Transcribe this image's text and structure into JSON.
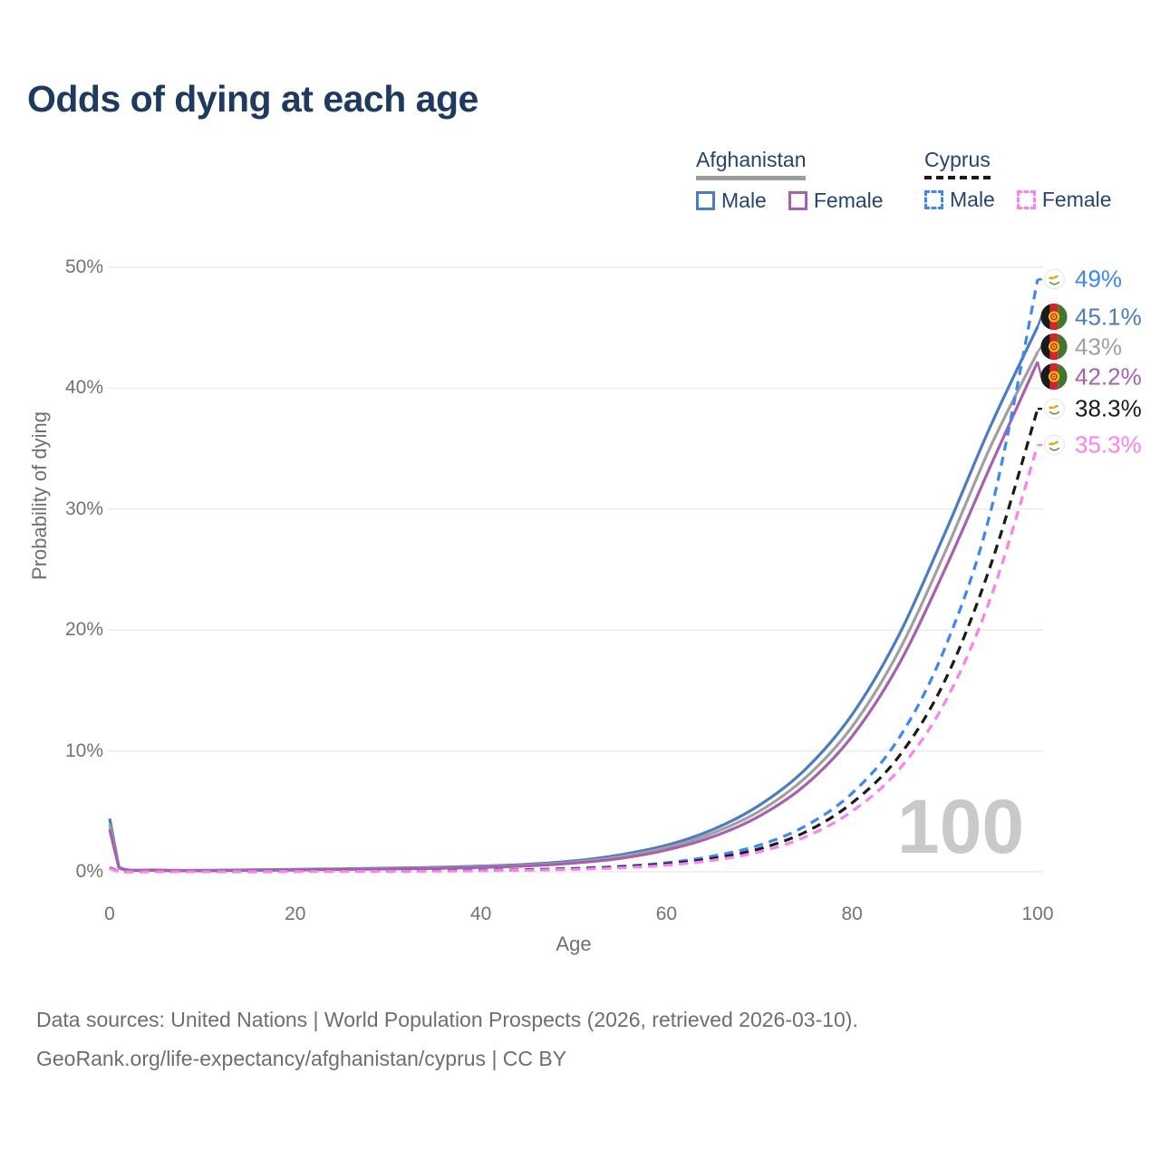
{
  "title": "Odds of dying at each age",
  "colors": {
    "title_text": "#1e3a5f",
    "legend_text": "#24456e",
    "axis_text": "#737373",
    "gridline": "#ebebeb",
    "watermark_text": "#c9c9c9",
    "footer_text": "#6e6e6e"
  },
  "legend": {
    "groups": [
      {
        "name": "Afghanistan",
        "line_style": "solid",
        "underline_color": "#9c9c9c",
        "items": [
          {
            "label": "Male",
            "color": "#4a7cc2",
            "dashed": false
          },
          {
            "label": "Female",
            "color": "#a85fae",
            "dashed": false
          }
        ]
      },
      {
        "name": "Cyprus",
        "line_style": "dashed",
        "underline_color": "#1a1a1a",
        "items": [
          {
            "label": "Male",
            "color": "#3e86f2",
            "dashed": true
          },
          {
            "label": "Female",
            "color": "#fb80f1",
            "dashed": true
          }
        ]
      }
    ]
  },
  "chart_data": {
    "type": "line",
    "title": "Odds of dying at each age",
    "xlabel": "Age",
    "ylabel": "Probability of dying",
    "xlim": [
      0,
      100
    ],
    "ylim": [
      0,
      50
    ],
    "grid": "horizontal",
    "legend_position": "top-right",
    "watermark": "100",
    "x_ticks": [
      {
        "value": 0,
        "label": "0"
      },
      {
        "value": 20,
        "label": "20"
      },
      {
        "value": 40,
        "label": "40"
      },
      {
        "value": 60,
        "label": "60"
      },
      {
        "value": 80,
        "label": "80"
      },
      {
        "value": 100,
        "label": "100"
      }
    ],
    "y_ticks": [
      {
        "value": 0,
        "label": "0%"
      },
      {
        "value": 10,
        "label": "10%"
      },
      {
        "value": 20,
        "label": "20%"
      },
      {
        "value": 30,
        "label": "30%"
      },
      {
        "value": 40,
        "label": "40%"
      },
      {
        "value": 50,
        "label": "50%"
      }
    ],
    "x": [
      0,
      1,
      5,
      10,
      15,
      20,
      25,
      30,
      35,
      40,
      45,
      50,
      55,
      60,
      65,
      70,
      75,
      80,
      85,
      90,
      95,
      100
    ],
    "series": [
      {
        "name": "Afghanistan Male",
        "country": "Afghanistan",
        "sex": "Male",
        "flag": "afghanistan",
        "color": "#4a7cc2",
        "dashed": false,
        "end_value": 45.1,
        "end_label": "45.1%",
        "values": [
          4.4,
          0.4,
          0.15,
          0.12,
          0.16,
          0.2,
          0.25,
          0.3,
          0.37,
          0.47,
          0.62,
          0.9,
          1.4,
          2.2,
          3.5,
          5.5,
          8.5,
          13.0,
          19.5,
          28.0,
          37.0,
          45.1
        ]
      },
      {
        "name": "Afghanistan Both sexes",
        "country": "Afghanistan",
        "sex": "All",
        "flag": "afghanistan",
        "color": "#a0a0a0",
        "dashed": false,
        "end_value": 43,
        "end_label": "43%",
        "values": [
          3.9,
          0.37,
          0.14,
          0.1,
          0.14,
          0.17,
          0.22,
          0.26,
          0.32,
          0.41,
          0.55,
          0.8,
          1.25,
          2.0,
          3.2,
          5.0,
          7.8,
          12.0,
          18.2,
          26.4,
          35.3,
          43.0
        ]
      },
      {
        "name": "Afghanistan Female",
        "country": "Afghanistan",
        "sex": "Female",
        "flag": "afghanistan",
        "color": "#a85fae",
        "dashed": false,
        "end_value": 42.2,
        "end_label": "42.2%",
        "values": [
          3.5,
          0.34,
          0.12,
          0.09,
          0.12,
          0.15,
          0.19,
          0.23,
          0.28,
          0.36,
          0.49,
          0.72,
          1.1,
          1.8,
          2.9,
          4.6,
          7.2,
          11.2,
          17.1,
          25.0,
          33.7,
          42.2
        ]
      },
      {
        "name": "Cyprus Male",
        "country": "Cyprus",
        "sex": "Male",
        "flag": "cyprus",
        "color": "#3e86f2",
        "dashed": true,
        "end_value": 49,
        "end_label": "49%",
        "values": [
          0.35,
          0.03,
          0.01,
          0.01,
          0.03,
          0.05,
          0.06,
          0.07,
          0.09,
          0.12,
          0.18,
          0.28,
          0.45,
          0.75,
          1.3,
          2.2,
          3.8,
          6.5,
          11.0,
          18.5,
          30.0,
          49.0
        ]
      },
      {
        "name": "Cyprus Both sexes",
        "country": "Cyprus",
        "sex": "All",
        "flag": "cyprus",
        "color": "#1a1a1a",
        "dashed": true,
        "end_value": 38.3,
        "end_label": "38.3%",
        "values": [
          0.3,
          0.03,
          0.01,
          0.01,
          0.02,
          0.04,
          0.05,
          0.06,
          0.08,
          0.11,
          0.16,
          0.25,
          0.4,
          0.65,
          1.1,
          1.9,
          3.3,
          5.7,
          9.5,
          15.8,
          25.5,
          38.3
        ]
      },
      {
        "name": "Cyprus Female",
        "country": "Cyprus",
        "sex": "Female",
        "flag": "cyprus",
        "color": "#fb80f1",
        "dashed": true,
        "end_value": 35.3,
        "end_label": "35.3%",
        "values": [
          0.28,
          0.02,
          0.01,
          0.01,
          0.02,
          0.03,
          0.04,
          0.05,
          0.06,
          0.09,
          0.13,
          0.2,
          0.33,
          0.55,
          0.95,
          1.65,
          2.9,
          5.0,
          8.4,
          14.0,
          22.8,
          35.3
        ]
      }
    ]
  },
  "footer": {
    "line1": "Data sources: United Nations | World Population Prospects (2026, retrieved 2026-03-10).",
    "line2": "GeoRank.org/life-expectancy/afghanistan/cyprus | CC BY"
  }
}
